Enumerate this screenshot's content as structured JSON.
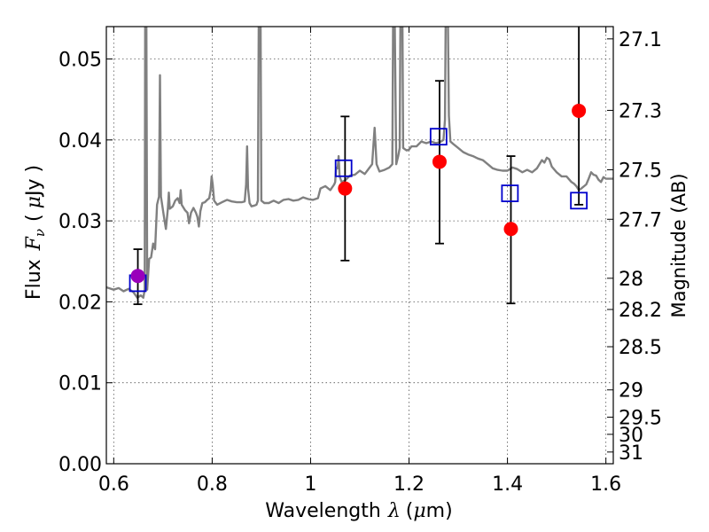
{
  "chart_data": {
    "type": "scatter",
    "title": "",
    "xlabel": "Wavelength",
    "xlabel_symbol": "λ",
    "xlabel_unit_open": "(",
    "xlabel_unit_mu": "μ",
    "xlabel_unit_rest": "m)",
    "ylabel": "Flux",
    "ylabel_symbol": "F",
    "ylabel_sub": "ν",
    "ylabel_unit_open": "(",
    "ylabel_unit_mu": "μ",
    "ylabel_unit_rest": "Jy )",
    "y2label": "Magnitude (AB)",
    "xlim": [
      0.585,
      1.615
    ],
    "ylim": [
      0.0,
      0.054
    ],
    "grid": true,
    "xticks": [
      {
        "value": 0.6,
        "label": "0.6"
      },
      {
        "value": 0.8,
        "label": "0.8"
      },
      {
        "value": 1.0,
        "label": "1"
      },
      {
        "value": 1.2,
        "label": "1.2"
      },
      {
        "value": 1.4,
        "label": "1.4"
      },
      {
        "value": 1.6,
        "label": "1.6"
      }
    ],
    "yticks": [
      {
        "value": 0.0,
        "label": "0.00"
      },
      {
        "value": 0.01,
        "label": "0.01"
      },
      {
        "value": 0.02,
        "label": "0.02"
      },
      {
        "value": 0.03,
        "label": "0.03"
      },
      {
        "value": 0.04,
        "label": "0.04"
      },
      {
        "value": 0.05,
        "label": "0.05"
      }
    ],
    "y2ticks": [
      {
        "mag": 27.1,
        "label": "27.1"
      },
      {
        "mag": 27.3,
        "label": "27.3"
      },
      {
        "mag": 27.5,
        "label": "27.5"
      },
      {
        "mag": 27.7,
        "label": "27.7"
      },
      {
        "mag": 28.0,
        "label": "28"
      },
      {
        "mag": 28.2,
        "label": "28.2"
      },
      {
        "mag": 28.5,
        "label": "28.5"
      },
      {
        "mag": 29.0,
        "label": "29"
      },
      {
        "mag": 29.5,
        "label": "29.5"
      },
      {
        "mag": 30.0,
        "label": "30"
      },
      {
        "mag": 31.0,
        "label": "31"
      }
    ],
    "colors": {
      "spectrum": "#808080",
      "observed": "#ff0000",
      "model": "#0000cc",
      "highlight": "#9900bb",
      "errorbar": "#000000",
      "grid": "#555555"
    },
    "spectrum": [
      [
        0.585,
        0.0218
      ],
      [
        0.6,
        0.0215
      ],
      [
        0.61,
        0.0217
      ],
      [
        0.62,
        0.0213
      ],
      [
        0.63,
        0.0216
      ],
      [
        0.64,
        0.0212
      ],
      [
        0.648,
        0.0205
      ],
      [
        0.655,
        0.0208
      ],
      [
        0.66,
        0.0205
      ],
      [
        0.663,
        0.0215
      ],
      [
        0.664,
        0.06
      ],
      [
        0.666,
        0.06
      ],
      [
        0.668,
        0.0215
      ],
      [
        0.672,
        0.0253
      ],
      [
        0.676,
        0.0255
      ],
      [
        0.68,
        0.0272
      ],
      [
        0.684,
        0.0265
      ],
      [
        0.688,
        0.032
      ],
      [
        0.692,
        0.033
      ],
      [
        0.694,
        0.048
      ],
      [
        0.696,
        0.033
      ],
      [
        0.702,
        0.0305
      ],
      [
        0.706,
        0.029
      ],
      [
        0.71,
        0.0315
      ],
      [
        0.712,
        0.0335
      ],
      [
        0.714,
        0.0315
      ],
      [
        0.72,
        0.0318
      ],
      [
        0.725,
        0.0325
      ],
      [
        0.73,
        0.0328
      ],
      [
        0.734,
        0.0322
      ],
      [
        0.736,
        0.0338
      ],
      [
        0.738,
        0.032
      ],
      [
        0.745,
        0.0313
      ],
      [
        0.75,
        0.031
      ],
      [
        0.753,
        0.0297
      ],
      [
        0.757,
        0.031
      ],
      [
        0.762,
        0.0316
      ],
      [
        0.767,
        0.031
      ],
      [
        0.77,
        0.0305
      ],
      [
        0.773,
        0.0293
      ],
      [
        0.776,
        0.0312
      ],
      [
        0.78,
        0.0322
      ],
      [
        0.785,
        0.0323
      ],
      [
        0.79,
        0.0326
      ],
      [
        0.794,
        0.0328
      ],
      [
        0.797,
        0.0338
      ],
      [
        0.799,
        0.0355
      ],
      [
        0.801,
        0.0345
      ],
      [
        0.804,
        0.0325
      ],
      [
        0.81,
        0.032
      ],
      [
        0.82,
        0.0323
      ],
      [
        0.83,
        0.0326
      ],
      [
        0.84,
        0.0324
      ],
      [
        0.85,
        0.0323
      ],
      [
        0.86,
        0.0323
      ],
      [
        0.866,
        0.0324
      ],
      [
        0.869,
        0.0345
      ],
      [
        0.871,
        0.0392
      ],
      [
        0.873,
        0.034
      ],
      [
        0.876,
        0.0322
      ],
      [
        0.88,
        0.0318
      ],
      [
        0.886,
        0.0319
      ],
      [
        0.89,
        0.032
      ],
      [
        0.893,
        0.0325
      ],
      [
        0.895,
        0.06
      ],
      [
        0.898,
        0.06
      ],
      [
        0.9,
        0.0325
      ],
      [
        0.906,
        0.0322
      ],
      [
        0.915,
        0.0322
      ],
      [
        0.925,
        0.0325
      ],
      [
        0.935,
        0.0322
      ],
      [
        0.945,
        0.0326
      ],
      [
        0.955,
        0.0327
      ],
      [
        0.965,
        0.0325
      ],
      [
        0.975,
        0.0326
      ],
      [
        0.985,
        0.0329
      ],
      [
        0.995,
        0.0327
      ],
      [
        1.005,
        0.0326
      ],
      [
        1.015,
        0.0328
      ],
      [
        1.02,
        0.034
      ],
      [
        1.03,
        0.0343
      ],
      [
        1.04,
        0.0338
      ],
      [
        1.048,
        0.0345
      ],
      [
        1.05,
        0.0348
      ],
      [
        1.052,
        0.0366
      ],
      [
        1.055,
        0.0365
      ],
      [
        1.057,
        0.038
      ],
      [
        1.059,
        0.0355
      ],
      [
        1.063,
        0.0348
      ],
      [
        1.07,
        0.035
      ],
      [
        1.08,
        0.0356
      ],
      [
        1.09,
        0.0357
      ],
      [
        1.1,
        0.0362
      ],
      [
        1.11,
        0.0358
      ],
      [
        1.12,
        0.0366
      ],
      [
        1.125,
        0.037
      ],
      [
        1.13,
        0.0415
      ],
      [
        1.134,
        0.037
      ],
      [
        1.14,
        0.0361
      ],
      [
        1.15,
        0.0363
      ],
      [
        1.16,
        0.0366
      ],
      [
        1.166,
        0.037
      ],
      [
        1.168,
        0.06
      ],
      [
        1.17,
        0.06
      ],
      [
        1.174,
        0.037
      ],
      [
        1.178,
        0.038
      ],
      [
        1.181,
        0.039
      ],
      [
        1.183,
        0.06
      ],
      [
        1.186,
        0.06
      ],
      [
        1.188,
        0.039
      ],
      [
        1.195,
        0.0387
      ],
      [
        1.2,
        0.0388
      ],
      [
        1.205,
        0.0392
      ],
      [
        1.215,
        0.0392
      ],
      [
        1.225,
        0.0398
      ],
      [
        1.235,
        0.0396
      ],
      [
        1.245,
        0.0398
      ],
      [
        1.255,
        0.0396
      ],
      [
        1.265,
        0.0398
      ],
      [
        1.27,
        0.04
      ],
      [
        1.273,
        0.0425
      ],
      [
        1.275,
        0.06
      ],
      [
        1.278,
        0.06
      ],
      [
        1.281,
        0.043
      ],
      [
        1.284,
        0.0398
      ],
      [
        1.29,
        0.0395
      ],
      [
        1.3,
        0.039
      ],
      [
        1.31,
        0.0385
      ],
      [
        1.32,
        0.0382
      ],
      [
        1.33,
        0.038
      ],
      [
        1.34,
        0.0377
      ],
      [
        1.35,
        0.0375
      ],
      [
        1.36,
        0.037
      ],
      [
        1.37,
        0.0365
      ],
      [
        1.38,
        0.0363
      ],
      [
        1.39,
        0.0362
      ],
      [
        1.4,
        0.0362
      ],
      [
        1.41,
        0.0366
      ],
      [
        1.42,
        0.0364
      ],
      [
        1.43,
        0.036
      ],
      [
        1.44,
        0.0363
      ],
      [
        1.45,
        0.036
      ],
      [
        1.46,
        0.0365
      ],
      [
        1.47,
        0.0375
      ],
      [
        1.475,
        0.0372
      ],
      [
        1.48,
        0.0378
      ],
      [
        1.485,
        0.0376
      ],
      [
        1.49,
        0.0367
      ],
      [
        1.5,
        0.036
      ],
      [
        1.51,
        0.0355
      ],
      [
        1.52,
        0.0355
      ],
      [
        1.53,
        0.0348
      ],
      [
        1.535,
        0.0346
      ],
      [
        1.54,
        0.0343
      ],
      [
        1.545,
        0.0338
      ],
      [
        1.55,
        0.034
      ],
      [
        1.56,
        0.0345
      ],
      [
        1.565,
        0.0352
      ],
      [
        1.57,
        0.036
      ],
      [
        1.575,
        0.0357
      ],
      [
        1.58,
        0.0356
      ],
      [
        1.585,
        0.0351
      ],
      [
        1.59,
        0.0348
      ],
      [
        1.595,
        0.0354
      ],
      [
        1.6,
        0.0352
      ],
      [
        1.61,
        0.0352
      ],
      [
        1.615,
        0.0352
      ]
    ],
    "observed": [
      {
        "x": 0.649,
        "y": 0.0232,
        "err_lo": 0.0197,
        "err_hi": 0.0265
      },
      {
        "x": 1.07,
        "y": 0.034,
        "err_lo": 0.0251,
        "err_hi": 0.0429
      },
      {
        "x": 1.262,
        "y": 0.0373,
        "err_lo": 0.0272,
        "err_hi": 0.0473
      },
      {
        "x": 1.407,
        "y": 0.029,
        "err_lo": 0.0198,
        "err_hi": 0.038
      },
      {
        "x": 1.545,
        "y": 0.0436,
        "err_lo": 0.032,
        "err_hi": 0.0545
      }
    ],
    "model": [
      {
        "x": 0.649,
        "y": 0.0223
      },
      {
        "x": 1.067,
        "y": 0.0365
      },
      {
        "x": 1.26,
        "y": 0.0404
      },
      {
        "x": 1.405,
        "y": 0.0334
      },
      {
        "x": 1.545,
        "y": 0.0325
      }
    ]
  }
}
